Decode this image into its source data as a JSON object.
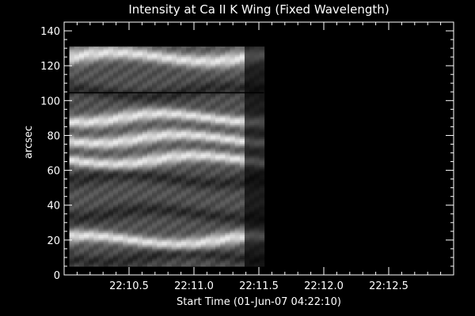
{
  "chart_data": {
    "type": "heatmap",
    "title": "Intensity at Ca II K Wing (Fixed Wavelength)",
    "xlabel": "Start Time (01-Jun-07 04:22:10)",
    "ylabel": "arcsec",
    "colormap": "grayscale",
    "xlim": [
      22.2,
      22.5
    ],
    "ylim": [
      0,
      145
    ],
    "x_ticks": [
      22.25,
      22.3,
      22.35,
      22.4,
      22.45,
      22.5
    ],
    "x_tick_labels": [
      "22:10.5",
      "22:11.0",
      "22:11.5",
      "22:12.0",
      "22:12.5"
    ],
    "x_tick_values": [
      22.25,
      22.3,
      22.35,
      22.4,
      22.45
    ],
    "y_ticks": [
      0,
      20,
      40,
      60,
      80,
      100,
      120,
      140
    ],
    "y_tick_labels": [
      "0",
      "20",
      "40",
      "60",
      "80",
      "100",
      "120",
      "140"
    ],
    "data_extent": {
      "x": [
        22.204,
        22.354
      ],
      "y": [
        5,
        131
      ]
    },
    "horizontal_line_y": 104.5,
    "bright_bands_arcsec": [
      125,
      90,
      78,
      66,
      20
    ],
    "dark_bands_arcsec": [
      105,
      55,
      35,
      10
    ]
  }
}
